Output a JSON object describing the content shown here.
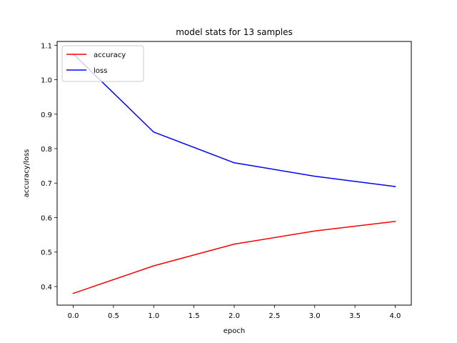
{
  "chart_data": {
    "type": "line",
    "title": "model stats for 13 samples",
    "xlabel": "epoch",
    "ylabel": "accuracy/loss",
    "x": [
      0,
      1,
      2,
      3,
      4
    ],
    "series": [
      {
        "name": "accuracy",
        "color": "#ff0000",
        "values": [
          0.38,
          0.46,
          0.523,
          0.561,
          0.589
        ]
      },
      {
        "name": "loss",
        "color": "#0000ff",
        "values": [
          1.075,
          0.848,
          0.759,
          0.72,
          0.69
        ]
      }
    ],
    "xlim": [
      -0.2,
      4.2
    ],
    "ylim": [
      0.346,
      1.111
    ],
    "xticks": [
      0.0,
      0.5,
      1.0,
      1.5,
      2.0,
      2.5,
      3.0,
      3.5,
      4.0
    ],
    "xtick_labels": [
      "0.0",
      "0.5",
      "1.0",
      "1.5",
      "2.0",
      "2.5",
      "3.0",
      "3.5",
      "4.0"
    ],
    "yticks": [
      0.4,
      0.5,
      0.6,
      0.7,
      0.8,
      0.9,
      1.0,
      1.1
    ],
    "ytick_labels": [
      "0.4",
      "0.5",
      "0.6",
      "0.7",
      "0.8",
      "0.9",
      "1.0",
      "1.1"
    ],
    "grid": false,
    "legend_position": "top-left"
  }
}
